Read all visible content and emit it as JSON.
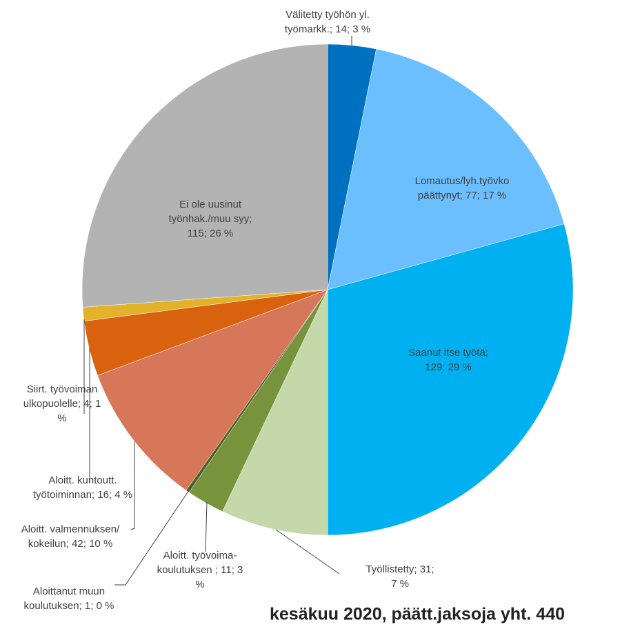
{
  "chart_data": {
    "type": "pie",
    "title": "kesäkuu 2020, päätt.jaksoja yht. 440",
    "values": [
      14,
      77,
      129,
      31,
      11,
      1,
      42,
      16,
      4,
      115
    ],
    "value_labels": [
      [
        "Välitetty työhön yl.",
        "työmarkk.; 14; 3 %"
      ],
      [
        "Lomautus/lyh.työvko",
        "päättynyt; 77; 17 %"
      ],
      [
        "Saanut itse työtä;",
        "129; 29 %"
      ],
      [
        "Työllistetty; 31;",
        "7 %"
      ],
      [
        "Aloitt. työvoima-",
        "koulutuksen ; 11; 3",
        "%"
      ],
      [
        "Aloittanut muun",
        "koulutuksen; 1; 0 %"
      ],
      [
        "Aloitt. valmennuksen/",
        "kokeilun; 42; 10 %"
      ],
      [
        "Aloitt. kuntoutt.",
        "työtoiminnan; 16; 4 %"
      ],
      [
        "Siirt. työvoiman",
        "ulkopuolelle; 4; 1",
        "%"
      ],
      [
        "Ei ole uusinut",
        "työnhak./muu syy;",
        "115; 26 %"
      ]
    ],
    "colors": [
      "#0070c0",
      "#6bbfff",
      "#00b0f0",
      "#c5d8a9",
      "#77933c",
      "#4f6228",
      "#d7775a",
      "#d9620f",
      "#e2b22a",
      "#b3b3b3"
    ]
  }
}
